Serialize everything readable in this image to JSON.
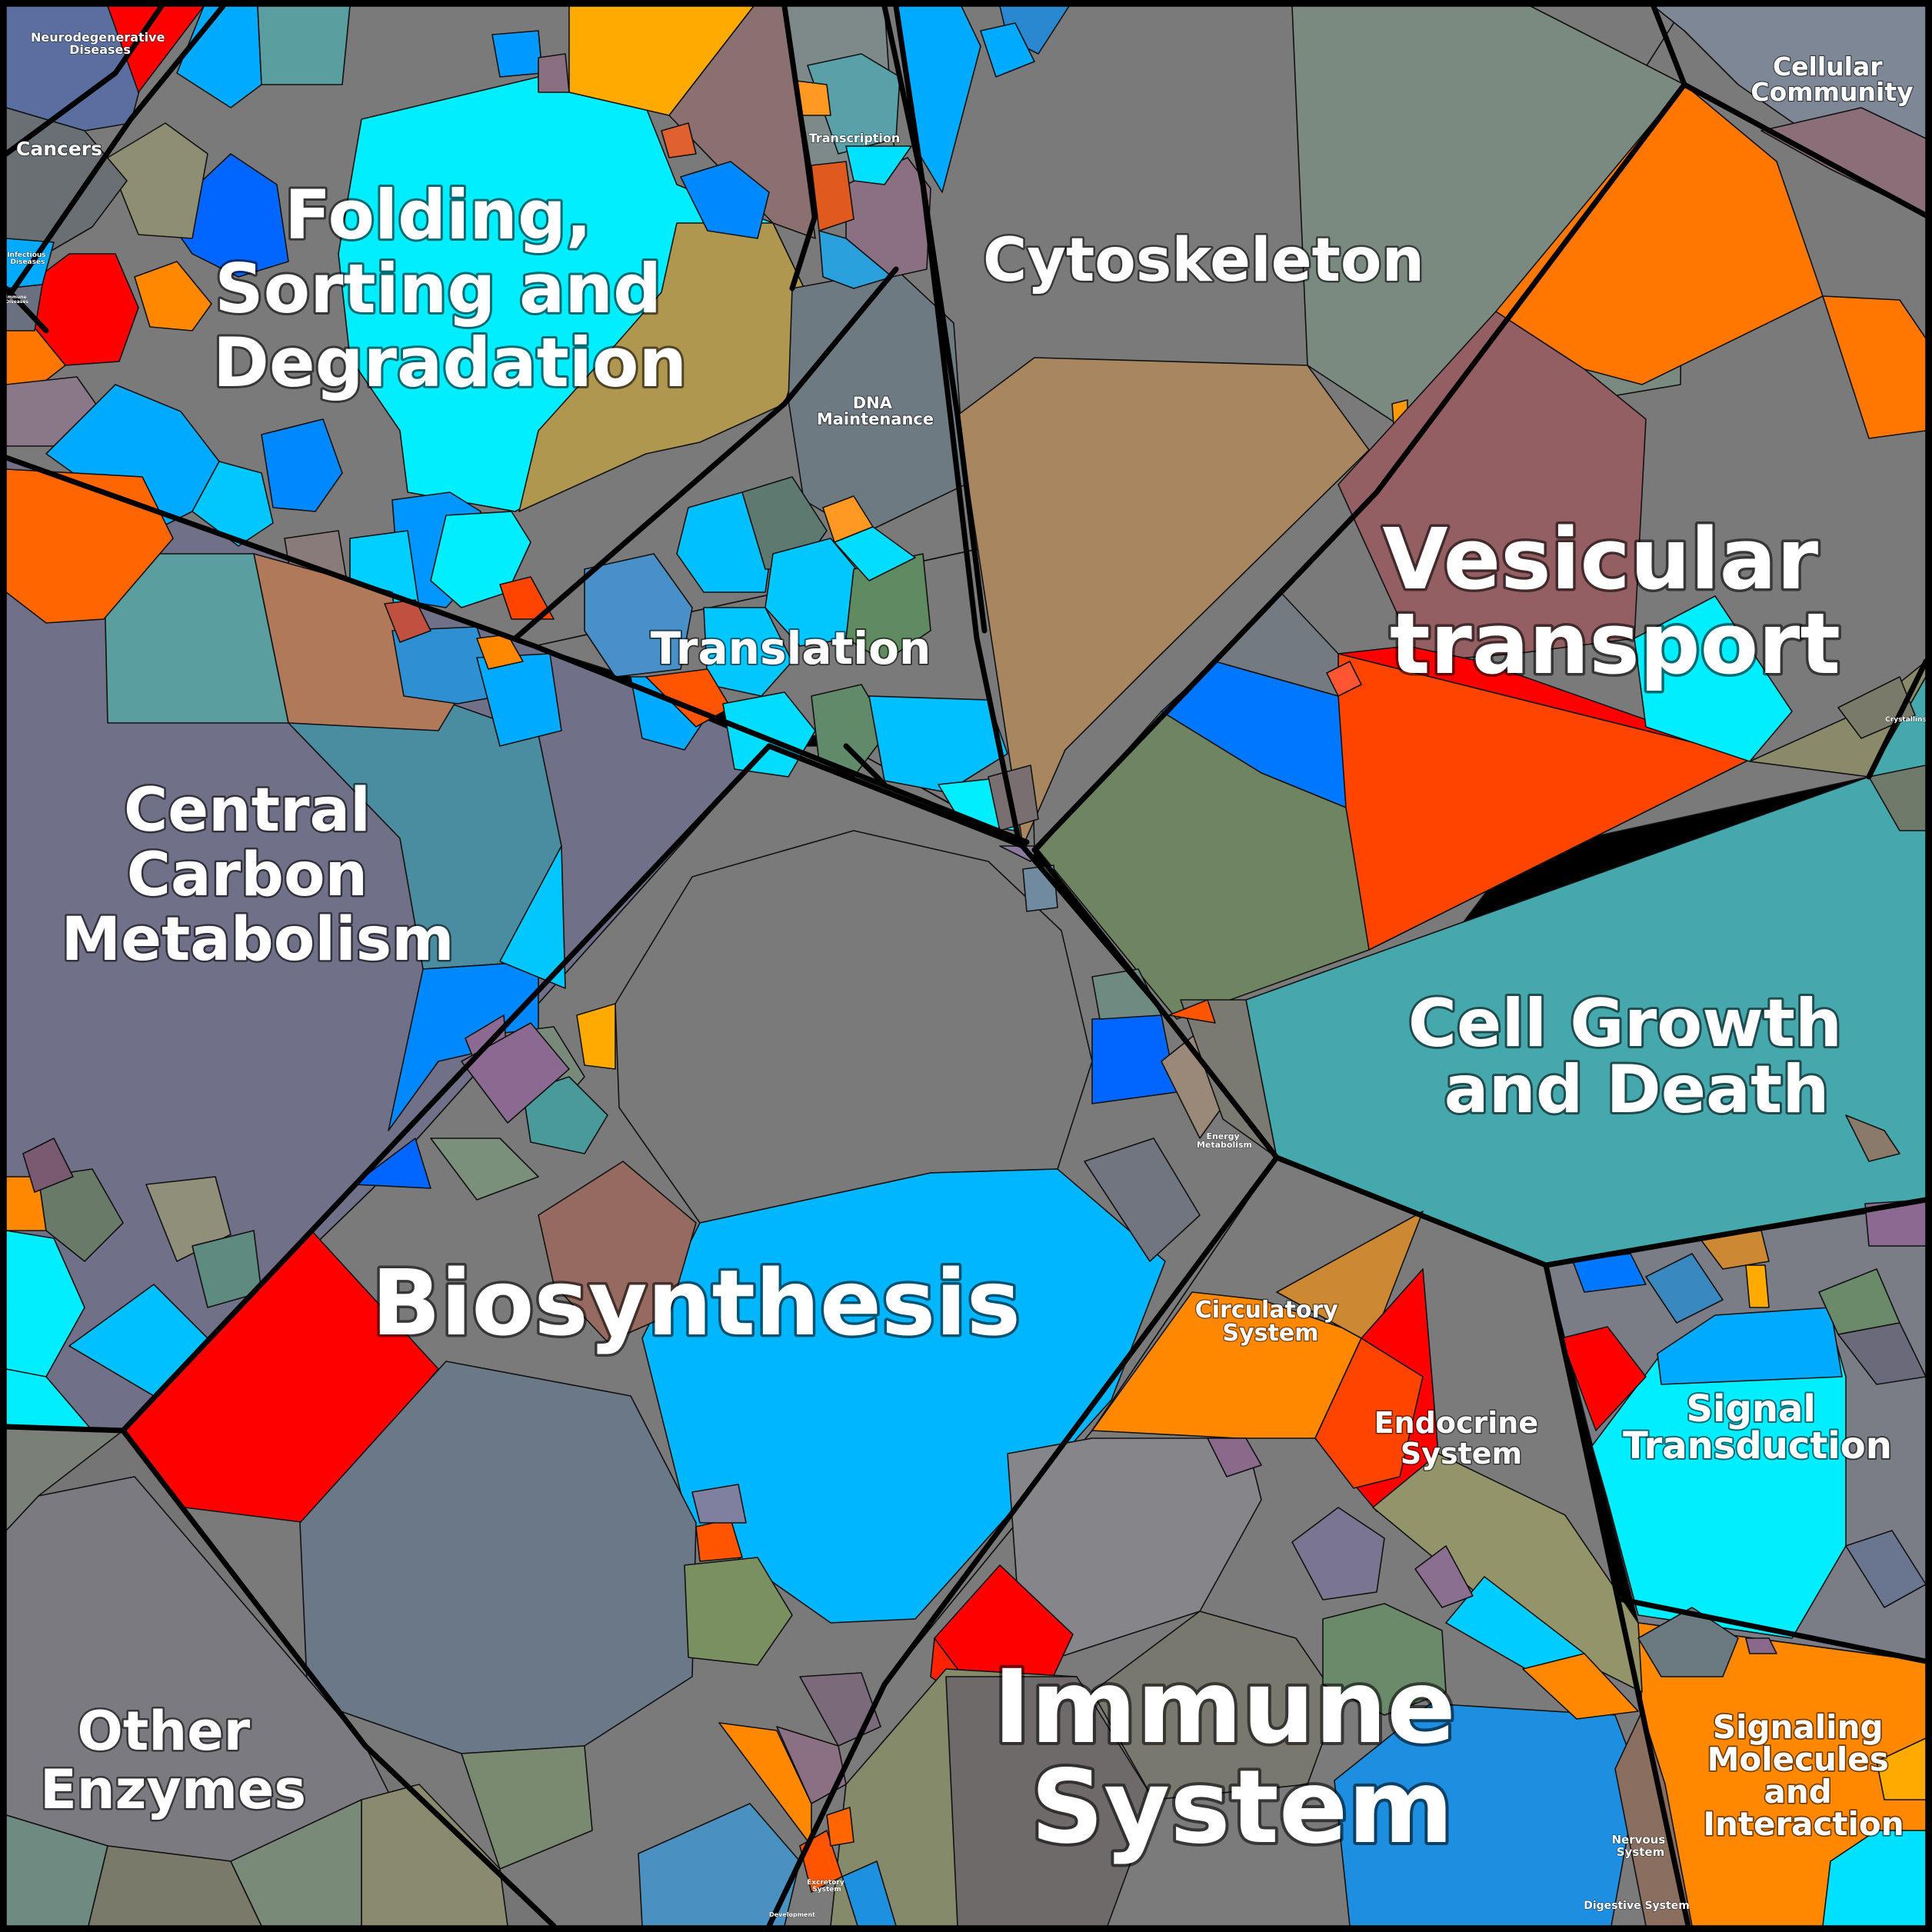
{
  "diagram": {
    "type": "voronoi-treemap",
    "colors": {
      "frame": "#000000",
      "label": "#ffffff",
      "grey": "#7a7a7a",
      "light_blue": "#00b7ff",
      "cyan": "#00eeff",
      "red": "#ff0000",
      "orange": "#ff8800",
      "dark_orange": "#ff7700",
      "brown": "#a88660",
      "slate": "#6e7a8a",
      "teal": "#45a8ad"
    },
    "categories": [
      {
        "id": "folding",
        "lines": [
          "Folding,",
          "Sorting and",
          "Degradation"
        ]
      },
      {
        "id": "cytoskeleton",
        "lines": [
          "Cytoskeleton"
        ]
      },
      {
        "id": "vesicular",
        "lines": [
          "Vesicular",
          "transport"
        ]
      },
      {
        "id": "central-carbon",
        "lines": [
          "Central",
          "Carbon",
          "Metabolism"
        ]
      },
      {
        "id": "translation",
        "lines": [
          "Translation"
        ]
      },
      {
        "id": "cell-growth",
        "lines": [
          "Cell Growth",
          "and Death"
        ]
      },
      {
        "id": "biosynthesis",
        "lines": [
          "Biosynthesis"
        ]
      },
      {
        "id": "immune",
        "lines": [
          "Immune",
          "System"
        ]
      },
      {
        "id": "other-enzymes",
        "lines": [
          "Other",
          "Enzymes"
        ]
      },
      {
        "id": "signal-transduction",
        "lines": [
          "Signal",
          "Transduction"
        ]
      },
      {
        "id": "signaling-molecules",
        "lines": [
          "Signaling",
          "Molecules",
          "and",
          "Interaction"
        ]
      },
      {
        "id": "endocrine",
        "lines": [
          "Endocrine",
          "System"
        ]
      },
      {
        "id": "circulatory",
        "lines": [
          "Circulatory",
          "System"
        ]
      },
      {
        "id": "dna-maintenance",
        "lines": [
          "DNA",
          "Maintenance"
        ]
      },
      {
        "id": "transcription",
        "lines": [
          "Transcription"
        ]
      },
      {
        "id": "cellular-community",
        "lines": [
          "Cellular",
          "Community"
        ]
      },
      {
        "id": "neurodegenerative",
        "lines": [
          "Neurodegenerative",
          "Diseases"
        ]
      },
      {
        "id": "cancers",
        "lines": [
          "Cancers"
        ]
      },
      {
        "id": "infectious",
        "lines": [
          "Infectious",
          "Diseases"
        ]
      },
      {
        "id": "energy-metabolism",
        "lines": [
          "Energy",
          "Metabolism"
        ]
      },
      {
        "id": "nervous",
        "lines": [
          "Nervous",
          "System"
        ]
      },
      {
        "id": "digestive",
        "lines": [
          "Digestive System"
        ]
      },
      {
        "id": "excretory",
        "lines": [
          "Excretory",
          "System"
        ]
      },
      {
        "id": "development",
        "lines": [
          "Development"
        ]
      },
      {
        "id": "crystallins",
        "lines": [
          "Crystallins"
        ]
      },
      {
        "id": "immune-diseases",
        "lines": [
          "Immune",
          "Diseases"
        ]
      }
    ]
  }
}
